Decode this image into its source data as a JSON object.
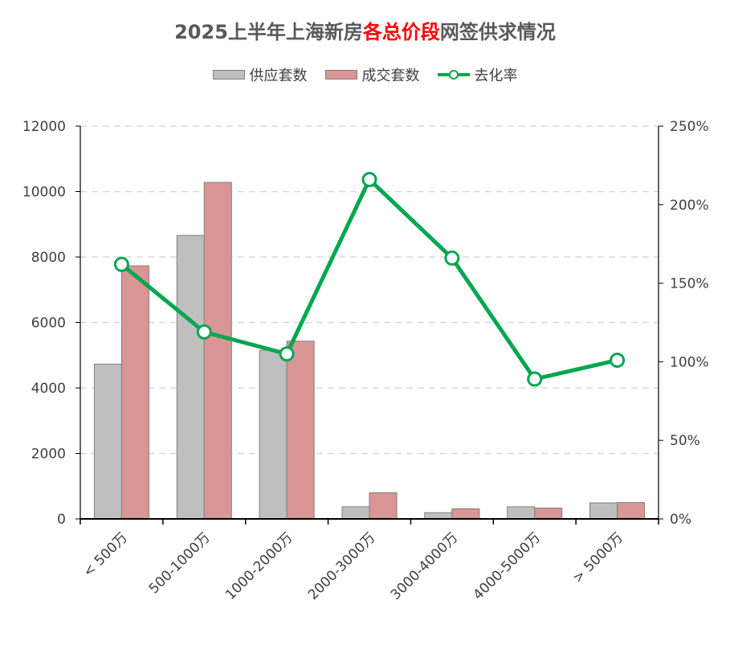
{
  "title": {
    "prefix": "2025上半年上海新房",
    "highlight": "各总价段",
    "suffix": "网签供求情况"
  },
  "colors": {
    "supply": "#bfbfbf",
    "deal": "#d99694",
    "rate": "#00a74f",
    "highlight": "#ff0000"
  },
  "chart_data": {
    "type": "bar",
    "title": "2025上半年上海新房各总价段网签供求情况",
    "categories": [
      "< 500万",
      "500-1000万",
      "1000-2000万",
      "2000-3000万",
      "3000-4000万",
      "4000-5000万",
      "> 5000万"
    ],
    "series": [
      {
        "name": "供应套数",
        "type": "bar",
        "axis": "left",
        "values": [
          4730,
          8660,
          5150,
          370,
          190,
          370,
          490
        ]
      },
      {
        "name": "成交套数",
        "type": "bar",
        "axis": "left",
        "values": [
          7730,
          10280,
          5430,
          800,
          310,
          330,
          500
        ]
      },
      {
        "name": "去化率",
        "type": "line",
        "axis": "right",
        "values": [
          162,
          119,
          105,
          216,
          166,
          89,
          101
        ]
      }
    ],
    "y_left": {
      "min": 0,
      "max": 12000,
      "ticks": [
        "0",
        "2000",
        "4000",
        "6000",
        "8000",
        "10000",
        "12000"
      ]
    },
    "y_right": {
      "min": 0,
      "max": 250,
      "ticks": [
        "0%",
        "50%",
        "100%",
        "150%",
        "200%",
        "250%"
      ]
    },
    "grid": "horizontal-dashed",
    "legend_position": "top-center"
  }
}
